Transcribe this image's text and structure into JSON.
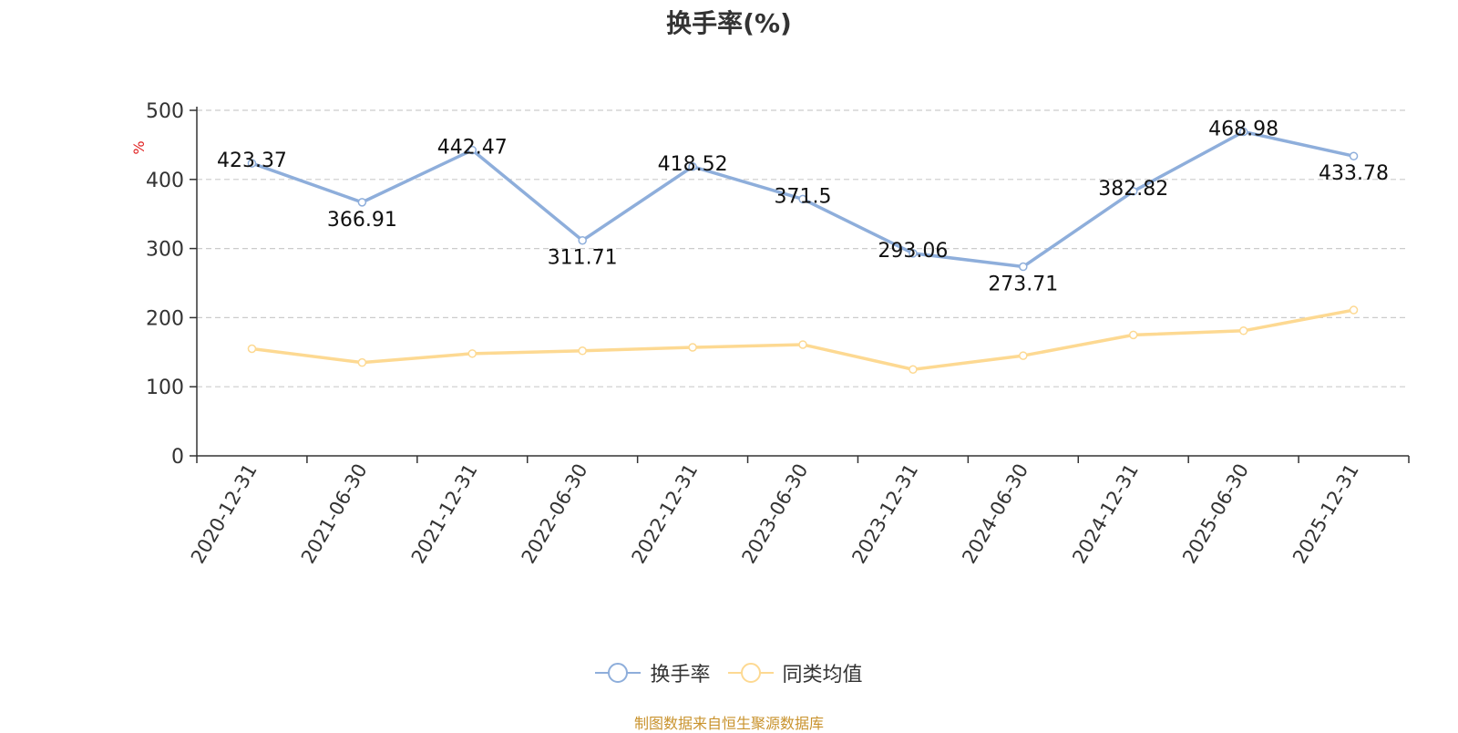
{
  "chart_data": {
    "type": "line",
    "title": "换手率(%)",
    "ylabel": "%",
    "xlabel": "",
    "ylim": [
      0,
      500
    ],
    "yticks": [
      0,
      100,
      200,
      300,
      400,
      500
    ],
    "grid": true,
    "categories": [
      "2020-12-31",
      "2021-06-30",
      "2021-12-31",
      "2022-06-30",
      "2022-12-31",
      "2023-06-30",
      "2023-12-31",
      "2024-06-30",
      "2024-12-31",
      "2025-06-30",
      "2025-12-31"
    ],
    "series": [
      {
        "name": "换手率",
        "color": "#8eaedb",
        "values": [
          423.37,
          366.91,
          442.47,
          311.71,
          418.52,
          371.5,
          293.06,
          273.71,
          382.82,
          468.98,
          433.78
        ],
        "data_labels": [
          "423.37",
          "366.91",
          "442.47",
          "311.71",
          "418.52",
          "371.5",
          "293.06",
          "273.71",
          "382.82",
          "468.98",
          "433.78"
        ]
      },
      {
        "name": "同类均值",
        "color": "#fdd992",
        "values": [
          155,
          135,
          148,
          152,
          157,
          161,
          125,
          145,
          175,
          181,
          211
        ]
      }
    ],
    "legend_position": "bottom-center"
  },
  "footer": {
    "source": "制图数据来自恒生聚源数据库",
    "source_color": "#c9932e"
  },
  "ylabel_color": "#e02020"
}
